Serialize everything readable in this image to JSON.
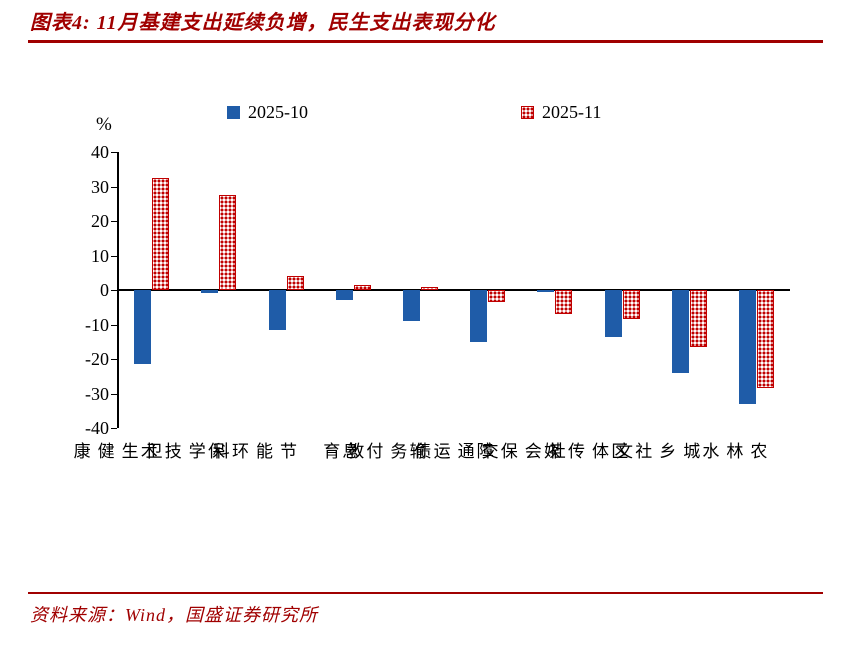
{
  "title": "图表4: 11月基建支出延续负增，民生支出表现分化",
  "source": "资料来源：Wind，国盛证券研究所",
  "colors": {
    "brand_red": "#A00000",
    "axis_black": "#000000",
    "bar_blue": "#1F5CA8",
    "bar_red": "#C00000"
  },
  "chart_data": {
    "type": "bar",
    "title": "图表4: 11月基建支出延续负增，民生支出表现分化",
    "ylabel": "%",
    "ylim": [
      -40,
      40
    ],
    "yticks": [
      40,
      30,
      20,
      10,
      0,
      -10,
      -20,
      -30,
      -40
    ],
    "grid": false,
    "legend_position": "top",
    "categories": [
      "卫生健康",
      "科学技术",
      "节能环保",
      "教育",
      "债务付息",
      "交通运输",
      "社会保障",
      "文体传媒",
      "城乡社区",
      "农林水"
    ],
    "series": [
      {
        "name": "2025-10",
        "color": "#1F5CA8",
        "fill": "solid",
        "values": [
          -21.5,
          -1.0,
          -11.5,
          -3.0,
          -9.0,
          -15.0,
          -0.5,
          -13.5,
          -24.0,
          -33.0
        ]
      },
      {
        "name": "2025-11",
        "color": "#C00000",
        "fill": "dotted",
        "values": [
          32.5,
          27.5,
          4.0,
          1.5,
          1.0,
          -3.5,
          -7.0,
          -8.5,
          -16.5,
          -28.5
        ]
      }
    ]
  }
}
